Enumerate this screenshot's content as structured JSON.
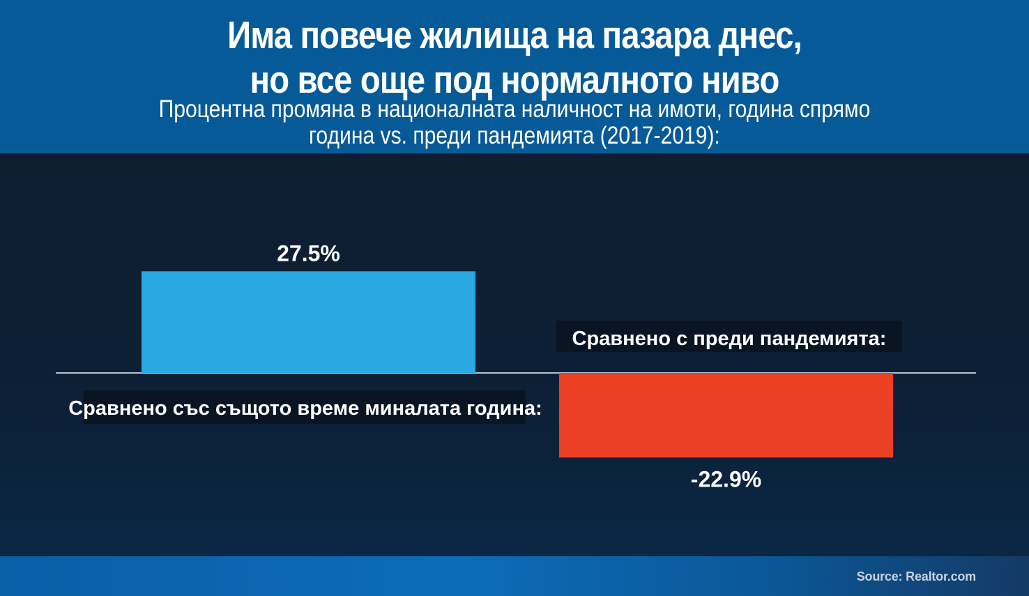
{
  "header": {
    "title_lines": [
      "Има повече жилища на пазара днес,",
      "но все още под нормалното ниво"
    ],
    "subtitle_lines": [
      "Процентна промяна в националната наличност на имоти, година спрямо",
      "година vs. преди пандемията (2017-2019):"
    ]
  },
  "footer": {
    "source": "Source: Realtor.com"
  },
  "colors": {
    "header_bg": "#075a98",
    "positive_bar": "#29a8e2",
    "negative_bar": "#ec4024",
    "zero_line": "#b7c2cf"
  },
  "chart_data": {
    "type": "bar",
    "title": "Има повече жилища на пазара днес, но все още под нормалното ниво",
    "subtitle": "Процентна промяна в националната наличност на имоти, година спрямо година vs. преди пандемията (2017-2019):",
    "categories": [
      "Сравнено със същото време миналата година:",
      "Сравнено с преди пандемията:"
    ],
    "values": [
      27.5,
      -22.9
    ],
    "data_labels": [
      "27.5%",
      "-22.9%"
    ],
    "xlabel": "",
    "ylabel": "",
    "ylim": [
      -60,
      50
    ],
    "grid": false,
    "legend": "none"
  }
}
